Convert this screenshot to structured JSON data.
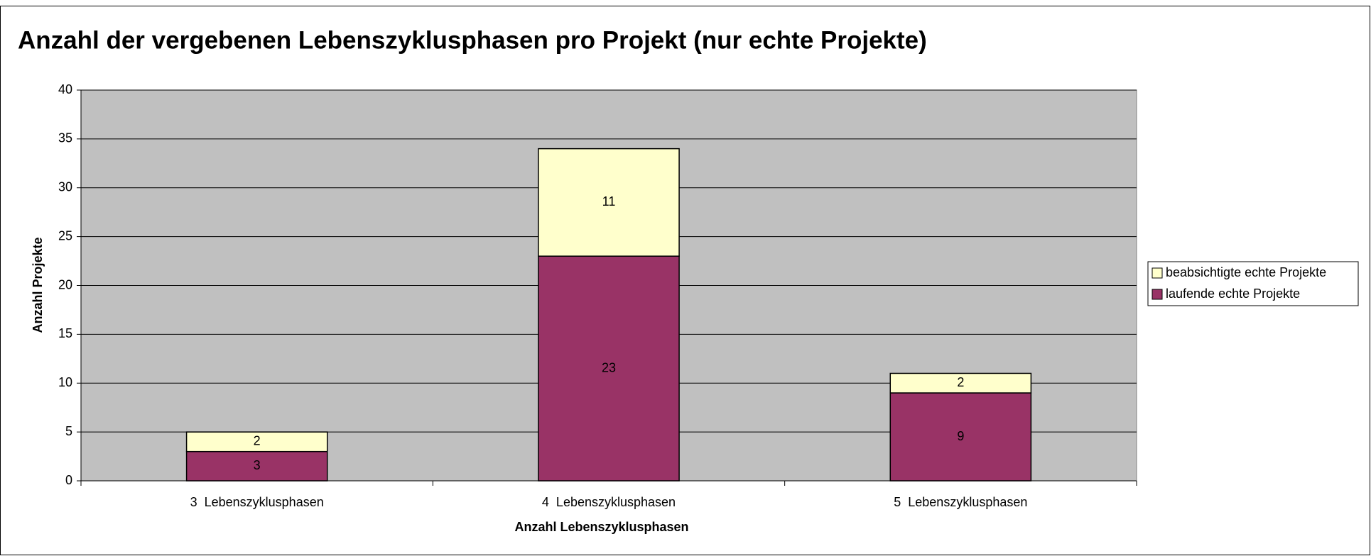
{
  "chart_data": {
    "type": "stacked_bar",
    "title": "Anzahl der vergebenen Lebenszyklusphasen pro Projekt (nur echte Projekte)",
    "x_label": "Anzahl Lebenszyklusphasen",
    "y_label": "Anzahl Projekte",
    "categories": [
      "3  Lebenszyklusphasen",
      "4  Lebenszyklusphasen",
      "5  Lebenszyklusphasen"
    ],
    "series": [
      {
        "name": "laufende echte Projekte",
        "color": "#993366",
        "values": [
          3,
          23,
          9
        ]
      },
      {
        "name": "beabsichtigte echte Projekte",
        "color": "#ffffcc",
        "values": [
          2,
          11,
          2
        ]
      }
    ],
    "ylim": [
      0,
      40
    ],
    "yticks": [
      0,
      5,
      10,
      15,
      20,
      25,
      30,
      35,
      40
    ],
    "grid": true,
    "legend": "right"
  }
}
